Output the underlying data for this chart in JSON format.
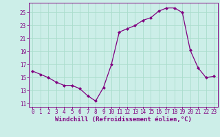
{
  "x": [
    0,
    1,
    2,
    3,
    4,
    5,
    6,
    7,
    8,
    9,
    10,
    11,
    12,
    13,
    14,
    15,
    16,
    17,
    18,
    19,
    20,
    21,
    22,
    23
  ],
  "y": [
    16.0,
    15.5,
    15.0,
    14.3,
    13.8,
    13.8,
    13.3,
    12.2,
    11.4,
    13.5,
    17.0,
    22.0,
    22.5,
    23.0,
    23.8,
    24.2,
    25.2,
    25.7,
    25.7,
    25.0,
    19.2,
    16.5,
    15.0,
    15.2
  ],
  "line_color": "#800080",
  "marker": "D",
  "marker_size": 2.0,
  "bg_color": "#cceee8",
  "grid_color": "#aaddcc",
  "xlabel": "Windchill (Refroidissement éolien,°C)",
  "xlabel_color": "#800080",
  "tick_color": "#800080",
  "ylim": [
    10.5,
    26.5
  ],
  "xlim": [
    -0.5,
    23.5
  ],
  "yticks": [
    11,
    13,
    15,
    17,
    19,
    21,
    23,
    25
  ],
  "xticks": [
    0,
    1,
    2,
    3,
    4,
    5,
    6,
    7,
    8,
    9,
    10,
    11,
    12,
    13,
    14,
    15,
    16,
    17,
    18,
    19,
    20,
    21,
    22,
    23
  ],
  "label_fontsize": 6.5,
  "tick_fontsize": 5.5
}
